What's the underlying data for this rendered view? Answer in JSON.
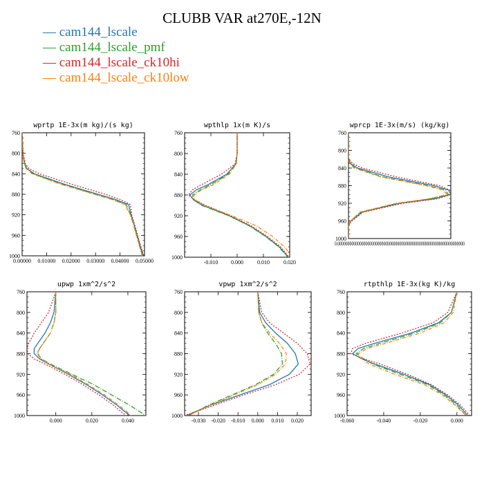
{
  "title": "CLUBB VAR at270E,-12N",
  "legend": [
    {
      "label": "cam144_lscale",
      "color": "#1f77b4"
    },
    {
      "label": "cam144_lscale_pmf",
      "color": "#2ca02c"
    },
    {
      "label": "cam144_lscale_ck10hi",
      "color": "#d62728"
    },
    {
      "label": "cam144_lscale_ck10low",
      "color": "#ff7f0e"
    }
  ],
  "chart_data": [
    {
      "type": "line",
      "title": "wprtp  1E-3x(m kg)/(s kg)",
      "xlim": [
        0,
        0.05
      ],
      "ylim": [
        760,
        1000
      ],
      "y_inverted": true,
      "xticks": [
        "0.00000",
        "0.01000",
        "0.02000",
        "0.03000",
        "0.04000",
        "0.05000"
      ],
      "yticks": [
        "760",
        "800",
        "840",
        "880",
        "920",
        "960",
        "1000"
      ],
      "y": [
        760,
        800,
        820,
        830,
        840,
        860,
        880,
        890,
        900,
        920,
        940,
        960,
        980,
        1000
      ],
      "series": [
        {
          "values": [
            0,
            0.0003,
            0.001,
            0.002,
            0.005,
            0.017,
            0.031,
            0.038,
            0.0435,
            0.0445,
            0.0458,
            0.047,
            0.0482,
            0.0495
          ]
        },
        {
          "values": [
            0,
            0.0003,
            0.0009,
            0.0018,
            0.0045,
            0.016,
            0.03,
            0.037,
            0.0425,
            0.0443,
            0.0456,
            0.0468,
            0.048,
            0.0492
          ]
        },
        {
          "values": [
            0,
            0.0004,
            0.0013,
            0.0028,
            0.007,
            0.02,
            0.034,
            0.04,
            0.0442,
            0.0448,
            0.046,
            0.0472,
            0.0484,
            0.0497
          ]
        },
        {
          "values": [
            0,
            0.0003,
            0.0008,
            0.0016,
            0.004,
            0.0155,
            0.0295,
            0.0365,
            0.042,
            0.0442,
            0.0455,
            0.0467,
            0.0479,
            0.049
          ]
        }
      ]
    },
    {
      "type": "line",
      "title": "wpthlp  1x(m K)/s",
      "xlim": [
        -0.02,
        0.02
      ],
      "ylim": [
        760,
        1000
      ],
      "y_inverted": true,
      "xticks": [
        "-0.010",
        "0.000",
        "0.010",
        "0.020"
      ],
      "xtick_values": [
        -0.01,
        0,
        0.01,
        0.02
      ],
      "yticks": [
        "760",
        "800",
        "840",
        "880",
        "920",
        "960",
        "1000"
      ],
      "y": [
        760,
        800,
        820,
        840,
        860,
        870,
        880,
        890,
        900,
        920,
        940,
        960,
        980,
        1000
      ],
      "series": [
        {
          "values": [
            0,
            0,
            -0.0005,
            -0.004,
            -0.011,
            -0.0155,
            -0.018,
            -0.0165,
            -0.013,
            -0.003,
            0.005,
            0.011,
            0.016,
            0.0195
          ]
        },
        {
          "values": [
            0,
            0,
            -0.0004,
            -0.0035,
            -0.01,
            -0.014,
            -0.017,
            -0.0165,
            -0.0135,
            -0.0032,
            0.0048,
            0.0108,
            0.0158,
            0.0193
          ]
        },
        {
          "values": [
            0,
            0,
            -0.0008,
            -0.006,
            -0.0135,
            -0.017,
            -0.0185,
            -0.016,
            -0.012,
            -0.0025,
            0.0055,
            0.0115,
            0.0165,
            0.0198
          ]
        },
        {
          "values": [
            0,
            0,
            -0.0003,
            -0.003,
            -0.009,
            -0.0135,
            -0.0165,
            -0.0158,
            -0.0125,
            -0.002,
            0.0075,
            0.0135,
            0.018,
            0.021
          ]
        }
      ]
    },
    {
      "type": "line",
      "title": "wprcp  1E-3x(m/s) (kg/kg)",
      "xlim": [
        0,
        9e-07
      ],
      "ylim": [
        760,
        1000
      ],
      "y_inverted": true,
      "xtick_text": "0.0000000000000000000000000000000000000000000000000000000000000000",
      "yticks": [
        "760",
        "800",
        "840",
        "880",
        "920",
        "960",
        "1000"
      ],
      "y": [
        760,
        820,
        830,
        840,
        860,
        880,
        890,
        900,
        910,
        920,
        940,
        960,
        970,
        980,
        1000
      ],
      "series": [
        {
          "values": [
            0,
            0,
            2e-08,
            8e-08,
            3.5e-07,
            7.5e-07,
            8.8e-07,
            9e-07,
            7.5e-07,
            4.5e-07,
            1.2e-07,
            2e-08,
            0,
            0,
            0
          ]
        },
        {
          "values": [
            0,
            0,
            1.5e-08,
            6e-08,
            3e-07,
            7e-07,
            8.5e-07,
            8.8e-07,
            7.2e-07,
            4.3e-07,
            1.1e-07,
            2e-08,
            0,
            0,
            0
          ]
        },
        {
          "values": [
            0,
            0,
            4e-08,
            1.2e-07,
            4.2e-07,
            8e-07,
            8.9e-07,
            9e-07,
            7.8e-07,
            4.8e-07,
            1.3e-07,
            3e-08,
            0,
            0,
            0
          ]
        },
        {
          "values": [
            0,
            0,
            1e-08,
            5e-08,
            2.8e-07,
            6.8e-07,
            8.3e-07,
            8.7e-07,
            7e-07,
            4.2e-07,
            1e-07,
            2e-08,
            0,
            0,
            0
          ]
        }
      ]
    },
    {
      "type": "line",
      "title": "upwp  1xm^2/s^2",
      "xlim": [
        -0.016,
        0.05
      ],
      "ylim": [
        760,
        1000
      ],
      "y_inverted": true,
      "xticks": [
        "0.000",
        "0.020",
        "0.040"
      ],
      "xtick_values": [
        0,
        0.02,
        0.04
      ],
      "yticks": [
        "760",
        "800",
        "840",
        "880",
        "920",
        "960",
        "1000"
      ],
      "y": [
        760,
        800,
        820,
        840,
        860,
        870,
        880,
        890,
        900,
        920,
        940,
        960,
        980,
        1000
      ],
      "series": [
        {
          "values": [
            0,
            -0.001,
            -0.003,
            -0.006,
            -0.01,
            -0.012,
            -0.012,
            -0.009,
            -0.004,
            0.007,
            0.017,
            0.026,
            0.034,
            0.041
          ]
        },
        {
          "values": [
            0,
            0,
            -0.001,
            -0.003,
            -0.007,
            -0.009,
            -0.01,
            -0.008,
            -0.003,
            0.009,
            0.021,
            0.031,
            0.041,
            0.05
          ]
        },
        {
          "values": [
            0,
            -0.004,
            -0.008,
            -0.012,
            -0.015,
            -0.016,
            -0.0155,
            -0.012,
            -0.006,
            0.005,
            0.015,
            0.024,
            0.032,
            0.039
          ]
        },
        {
          "values": [
            0,
            0,
            -0.001,
            -0.003,
            -0.007,
            -0.009,
            -0.0105,
            -0.008,
            -0.004,
            0.008,
            0.018,
            0.027,
            0.035,
            0.042
          ]
        }
      ]
    },
    {
      "type": "line",
      "title": "vpwp  1xm^2/s^2",
      "xlim": [
        -0.037,
        0.027
      ],
      "ylim": [
        760,
        1000
      ],
      "y_inverted": true,
      "xticks": [
        "-0.030",
        "-0.020",
        "-0.010",
        "0.000",
        "0.010",
        "0.020"
      ],
      "xtick_values": [
        -0.03,
        -0.02,
        -0.01,
        0,
        0.01,
        0.02
      ],
      "yticks": [
        "760",
        "800",
        "840",
        "880",
        "920",
        "960",
        "1000"
      ],
      "y": [
        760,
        800,
        820,
        840,
        860,
        880,
        900,
        920,
        940,
        960,
        980,
        1000
      ],
      "series": [
        {
          "values": [
            0,
            0.001,
            0.004,
            0.009,
            0.015,
            0.019,
            0.0205,
            0.016,
            0.006,
            -0.009,
            -0.024,
            -0.036
          ]
        },
        {
          "values": [
            0,
            0.0005,
            0.002,
            0.005,
            0.009,
            0.012,
            0.0125,
            0.008,
            -0.001,
            -0.013,
            -0.025,
            -0.035
          ]
        },
        {
          "values": [
            0,
            0.002,
            0.006,
            0.013,
            0.02,
            0.025,
            0.0265,
            0.021,
            0.009,
            -0.007,
            -0.022,
            -0.037
          ]
        },
        {
          "values": [
            0,
            0.0005,
            0.002,
            0.006,
            0.011,
            0.0145,
            0.014,
            0.009,
            0.0,
            -0.012,
            -0.024,
            -0.035
          ]
        }
      ]
    },
    {
      "type": "line",
      "title": "rtpthlp  1E-3x(kg K)/kg",
      "xlim": [
        -0.06,
        0.008
      ],
      "ylim": [
        760,
        1000
      ],
      "y_inverted": true,
      "xticks": [
        "-0.060",
        "-0.040",
        "-0.020",
        "0.000"
      ],
      "xtick_values": [
        -0.06,
        -0.04,
        -0.02,
        0
      ],
      "yticks": [
        "760",
        "800",
        "840",
        "880",
        "920",
        "960",
        "1000"
      ],
      "y": [
        760,
        800,
        820,
        840,
        860,
        870,
        880,
        890,
        900,
        920,
        940,
        960,
        980,
        1000
      ],
      "series": [
        {
          "values": [
            0,
            -0.003,
            -0.01,
            -0.025,
            -0.045,
            -0.054,
            -0.057,
            -0.052,
            -0.045,
            -0.029,
            -0.015,
            -0.006,
            0.001,
            0.006
          ]
        },
        {
          "values": [
            0,
            -0.003,
            -0.009,
            -0.023,
            -0.042,
            -0.051,
            -0.055,
            -0.051,
            -0.046,
            -0.031,
            -0.016,
            -0.007,
            0.0,
            0.005
          ]
        },
        {
          "values": [
            0,
            -0.005,
            -0.013,
            -0.03,
            -0.05,
            -0.057,
            -0.058,
            -0.051,
            -0.042,
            -0.027,
            -0.014,
            -0.005,
            0.002,
            0.007
          ]
        },
        {
          "values": [
            0,
            -0.002,
            -0.007,
            -0.02,
            -0.039,
            -0.049,
            -0.054,
            -0.052,
            -0.048,
            -0.034,
            -0.018,
            -0.008,
            -0.001,
            0.005
          ]
        }
      ]
    }
  ]
}
